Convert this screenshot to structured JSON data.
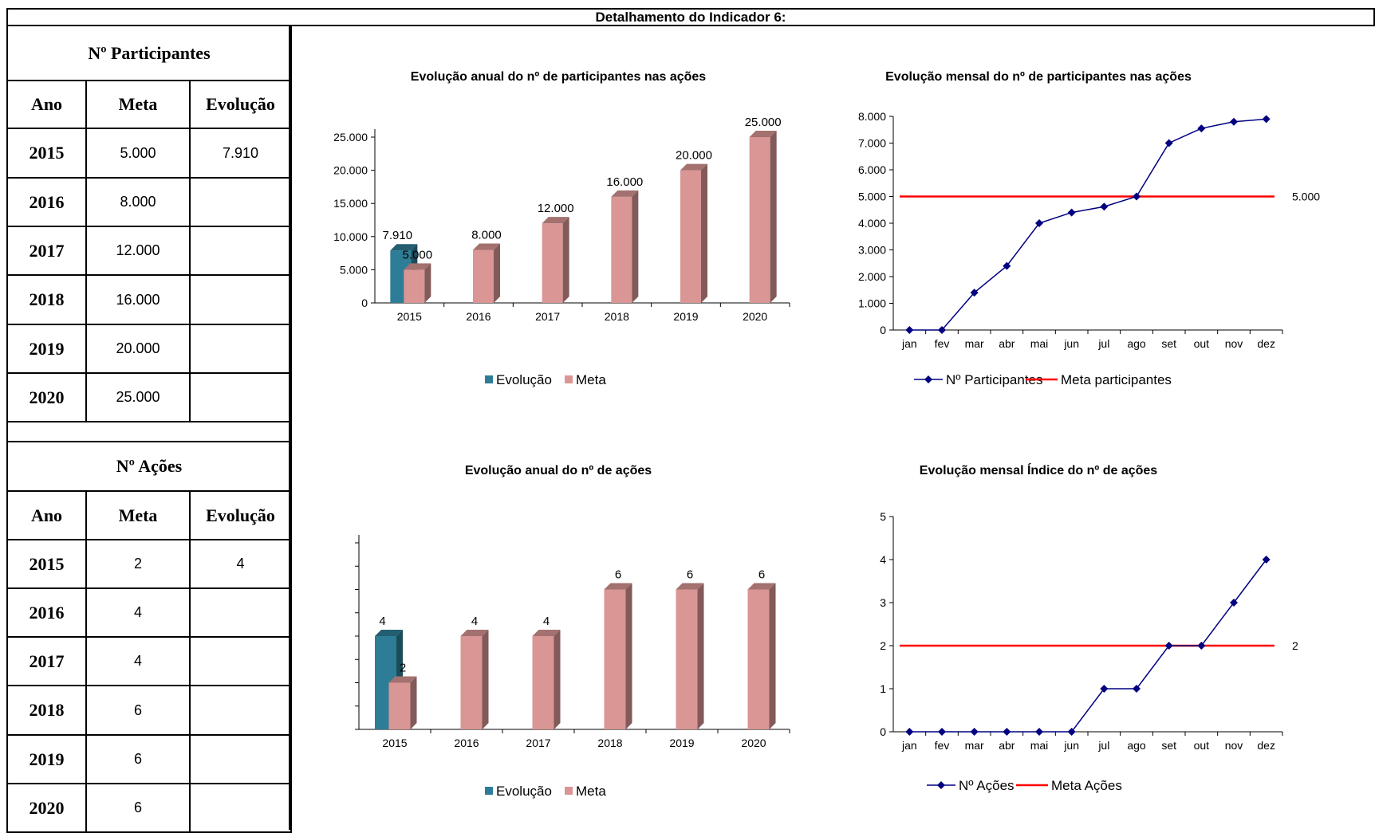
{
  "page": {
    "title": "Detalhamento do Indicador 6:"
  },
  "participants_table": {
    "title": "Nº Participantes",
    "headers": [
      "Ano",
      "Meta",
      "Evolução"
    ],
    "rows": [
      {
        "ano": "2015",
        "meta": "5.000",
        "evolucao": "7.910"
      },
      {
        "ano": "2016",
        "meta": "8.000",
        "evolucao": ""
      },
      {
        "ano": "2017",
        "meta": "12.000",
        "evolucao": ""
      },
      {
        "ano": "2018",
        "meta": "16.000",
        "evolucao": ""
      },
      {
        "ano": "2019",
        "meta": "20.000",
        "evolucao": ""
      },
      {
        "ano": "2020",
        "meta": "25.000",
        "evolucao": ""
      }
    ]
  },
  "actions_table": {
    "title": "Nº Ações",
    "headers": [
      "Ano",
      "Meta",
      "Evolução"
    ],
    "rows": [
      {
        "ano": "2015",
        "meta": "2",
        "evolucao": "4"
      },
      {
        "ano": "2016",
        "meta": "4",
        "evolucao": ""
      },
      {
        "ano": "2017",
        "meta": "4",
        "evolucao": ""
      },
      {
        "ano": "2018",
        "meta": "6",
        "evolucao": ""
      },
      {
        "ano": "2019",
        "meta": "6",
        "evolucao": ""
      },
      {
        "ano": "2020",
        "meta": "6",
        "evolucao": ""
      }
    ]
  },
  "chart_data": [
    {
      "id": "annual-participants",
      "type": "bar",
      "title": "Evolução  anual do nº de participantes nas ações",
      "categories": [
        "2015",
        "2016",
        "2017",
        "2018",
        "2019",
        "2020"
      ],
      "series": [
        {
          "name": "Evolução",
          "values": [
            7910,
            null,
            null,
            null,
            null,
            null
          ],
          "labels": [
            "7.910",
            "",
            "",
            "",
            "",
            ""
          ],
          "color": "#2e7d96"
        },
        {
          "name": "Meta",
          "values": [
            5000,
            8000,
            12000,
            16000,
            20000,
            25000
          ],
          "labels": [
            "5.000",
            "8.000",
            "12.000",
            "16.000",
            "20.000",
            "25.000"
          ],
          "color": "#d99694"
        }
      ],
      "ylim": [
        0,
        25000
      ],
      "yticks": [
        0,
        5000,
        10000,
        15000,
        20000,
        25000
      ],
      "ytick_labels": [
        "0",
        "5.000",
        "10.000",
        "15.000",
        "20.000",
        "25.000"
      ],
      "style": "3d-columns",
      "legend_position": "bottom"
    },
    {
      "id": "monthly-participants",
      "type": "line",
      "title": "Evolução mensal do nº de participantes nas ações",
      "categories": [
        "jan",
        "fev",
        "mar",
        "abr",
        "mai",
        "jun",
        "jul",
        "ago",
        "set",
        "out",
        "nov",
        "dez"
      ],
      "series": [
        {
          "name": "Nº Participantes",
          "values": [
            0,
            0,
            1400,
            2400,
            4000,
            4400,
            4620,
            5000,
            7000,
            7550,
            7800,
            7900
          ],
          "color": "#000080",
          "marker": "diamond"
        },
        {
          "name": "Meta participantes",
          "values": [
            5000,
            5000,
            5000,
            5000,
            5000,
            5000,
            5000,
            5000,
            5000,
            5000,
            5000,
            5000
          ],
          "color": "#ff0000",
          "end_label": "5.000"
        }
      ],
      "ylim": [
        0,
        8000
      ],
      "yticks": [
        0,
        1000,
        2000,
        3000,
        4000,
        5000,
        6000,
        7000,
        8000
      ],
      "ytick_labels": [
        "0",
        "1.000",
        "2.000",
        "3.000",
        "4.000",
        "5.000",
        "6.000",
        "7.000",
        "8.000"
      ],
      "legend_position": "bottom"
    },
    {
      "id": "annual-actions",
      "type": "bar",
      "title": "Evolução  anual do nº de ações",
      "categories": [
        "2015",
        "2016",
        "2017",
        "2018",
        "2019",
        "2020"
      ],
      "series": [
        {
          "name": "Evolução",
          "values": [
            4,
            null,
            null,
            null,
            null,
            null
          ],
          "labels": [
            "4",
            "",
            "",
            "",
            "",
            ""
          ],
          "color": "#2e7d96"
        },
        {
          "name": "Meta",
          "values": [
            2,
            4,
            4,
            6,
            6,
            6
          ],
          "labels": [
            "2",
            "4",
            "4",
            "6",
            "6",
            "6"
          ],
          "color": "#d99694"
        }
      ],
      "ylim": [
        0,
        8
      ],
      "yticks": [
        0,
        1,
        2,
        3,
        4,
        5,
        6,
        7,
        8
      ],
      "ytick_labels": [
        "",
        "",
        "",
        "",
        "",
        "",
        "",
        "",
        ""
      ],
      "style": "3d-columns",
      "legend_position": "bottom"
    },
    {
      "id": "monthly-actions",
      "type": "line",
      "title": "Evolução mensal Índice do nº de ações",
      "categories": [
        "jan",
        "fev",
        "mar",
        "abr",
        "mai",
        "jun",
        "jul",
        "ago",
        "set",
        "out",
        "nov",
        "dez"
      ],
      "series": [
        {
          "name": "Nº Ações",
          "values": [
            0,
            0,
            0,
            0,
            0,
            0,
            1,
            1,
            2,
            2,
            3,
            4
          ],
          "color": "#000080",
          "marker": "diamond"
        },
        {
          "name": "Meta Ações",
          "values": [
            2,
            2,
            2,
            2,
            2,
            2,
            2,
            2,
            2,
            2,
            2,
            2
          ],
          "color": "#ff0000",
          "end_label": "2"
        }
      ],
      "ylim": [
        0,
        5
      ],
      "yticks": [
        0,
        1,
        2,
        3,
        4,
        5
      ],
      "ytick_labels": [
        "0",
        "1",
        "2",
        "3",
        "4",
        "5"
      ],
      "legend_position": "bottom"
    }
  ]
}
